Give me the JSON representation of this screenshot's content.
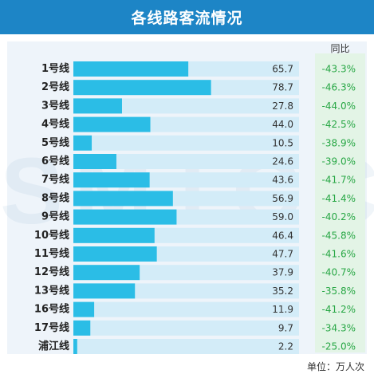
{
  "header": {
    "title": "各线路客流情况"
  },
  "watermark": "SMTCC",
  "yoy_header": "同比",
  "unit_note": "单位：万人次",
  "colors": {
    "header": "#1d85c6",
    "bar": "#2bbde6",
    "track": "#d3ecf8",
    "yoy": "#28a745"
  },
  "chart_data": {
    "type": "bar",
    "orientation": "horizontal",
    "title": "各线路客流情况",
    "unit": "单位：万人次",
    "categories": [
      "1号线",
      "2号线",
      "3号线",
      "4号线",
      "5号线",
      "6号线",
      "7号线",
      "8号线",
      "9号线",
      "10号线",
      "11号线",
      "12号线",
      "13号线",
      "16号线",
      "17号线",
      "浦江线"
    ],
    "values": [
      65.7,
      78.7,
      27.8,
      44.0,
      10.5,
      24.6,
      43.6,
      56.9,
      59.0,
      46.4,
      47.7,
      37.9,
      35.2,
      11.9,
      9.7,
      2.2
    ],
    "value_labels": [
      "65.7",
      "78.7",
      "27.8",
      "44.0",
      "10.5",
      "24.6",
      "43.6",
      "56.9",
      "59.0",
      "46.4",
      "47.7",
      "37.9",
      "35.2",
      "11.9",
      "9.7",
      "2.2"
    ],
    "yoy_header": "同比",
    "yoy": [
      "-43.3%",
      "-46.3%",
      "-44.0%",
      "-42.5%",
      "-38.9%",
      "-39.0%",
      "-41.7%",
      "-41.4%",
      "-40.2%",
      "-45.8%",
      "-41.6%",
      "-40.7%",
      "-35.8%",
      "-41.2%",
      "-34.3%",
      "-25.0%"
    ],
    "xlim": [
      0,
      129
    ]
  }
}
